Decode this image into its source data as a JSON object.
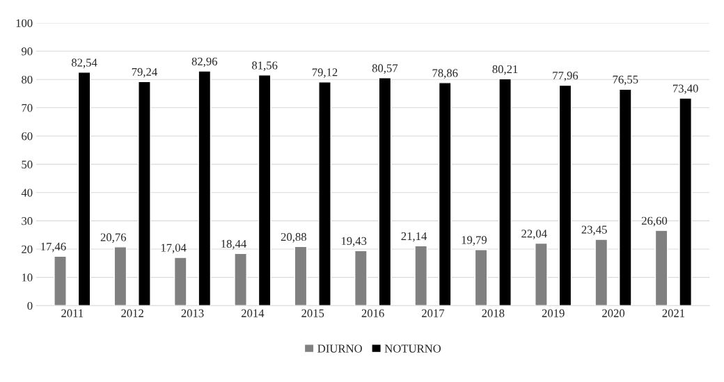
{
  "chart_data": {
    "type": "bar",
    "categories": [
      "2011",
      "2012",
      "2013",
      "2014",
      "2015",
      "2016",
      "2017",
      "2018",
      "2019",
      "2020",
      "2021"
    ],
    "series": [
      {
        "name": "DIURNO",
        "color": "#808080",
        "values": [
          17.46,
          20.76,
          17.04,
          18.44,
          20.88,
          19.43,
          21.14,
          19.79,
          22.04,
          23.45,
          26.6
        ],
        "value_labels": [
          "17,46",
          "20,76",
          "17,04",
          "18,44",
          "20,88",
          "19,43",
          "21,14",
          "19,79",
          "22,04",
          "23,45",
          "26,60"
        ]
      },
      {
        "name": "NOTURNO",
        "color": "#000000",
        "values": [
          82.54,
          79.24,
          82.96,
          81.56,
          79.12,
          80.57,
          78.86,
          80.21,
          77.96,
          76.55,
          73.4
        ],
        "value_labels": [
          "82,54",
          "79,24",
          "82,96",
          "81,56",
          "79,12",
          "80,57",
          "78,86",
          "80,21",
          "77,96",
          "76,55",
          "73,40"
        ]
      }
    ],
    "ylim": [
      0,
      100
    ],
    "yticks": [
      0,
      10,
      20,
      30,
      40,
      50,
      60,
      70,
      80,
      90,
      100
    ],
    "grid": "y",
    "legend": "bottom"
  }
}
